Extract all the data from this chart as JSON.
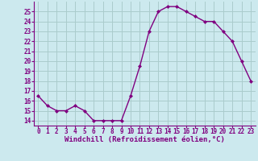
{
  "x": [
    0,
    1,
    2,
    3,
    4,
    5,
    6,
    7,
    8,
    9,
    10,
    11,
    12,
    13,
    14,
    15,
    16,
    17,
    18,
    19,
    20,
    21,
    22,
    23
  ],
  "y": [
    16.5,
    15.5,
    15.0,
    15.0,
    15.5,
    15.0,
    14.0,
    14.0,
    14.0,
    14.0,
    16.5,
    19.5,
    23.0,
    25.0,
    25.5,
    25.5,
    25.0,
    24.5,
    24.0,
    24.0,
    23.0,
    22.0,
    20.0,
    18.0
  ],
  "line_color": "#800080",
  "marker": "D",
  "marker_size": 2.0,
  "bg_color": "#cce9ee",
  "grid_color": "#aacccc",
  "xlabel": "Windchill (Refroidissement éolien,°C)",
  "xlabel_color": "#800080",
  "tick_color": "#800080",
  "spine_color": "#800080",
  "ylim": [
    13.5,
    26.0
  ],
  "xlim": [
    -0.5,
    23.5
  ],
  "yticks": [
    14,
    15,
    16,
    17,
    18,
    19,
    20,
    21,
    22,
    23,
    24,
    25
  ],
  "xticks": [
    0,
    1,
    2,
    3,
    4,
    5,
    6,
    7,
    8,
    9,
    10,
    11,
    12,
    13,
    14,
    15,
    16,
    17,
    18,
    19,
    20,
    21,
    22,
    23
  ],
  "tick_fontsize": 5.5,
  "xlabel_fontsize": 6.5,
  "linewidth": 1.0
}
